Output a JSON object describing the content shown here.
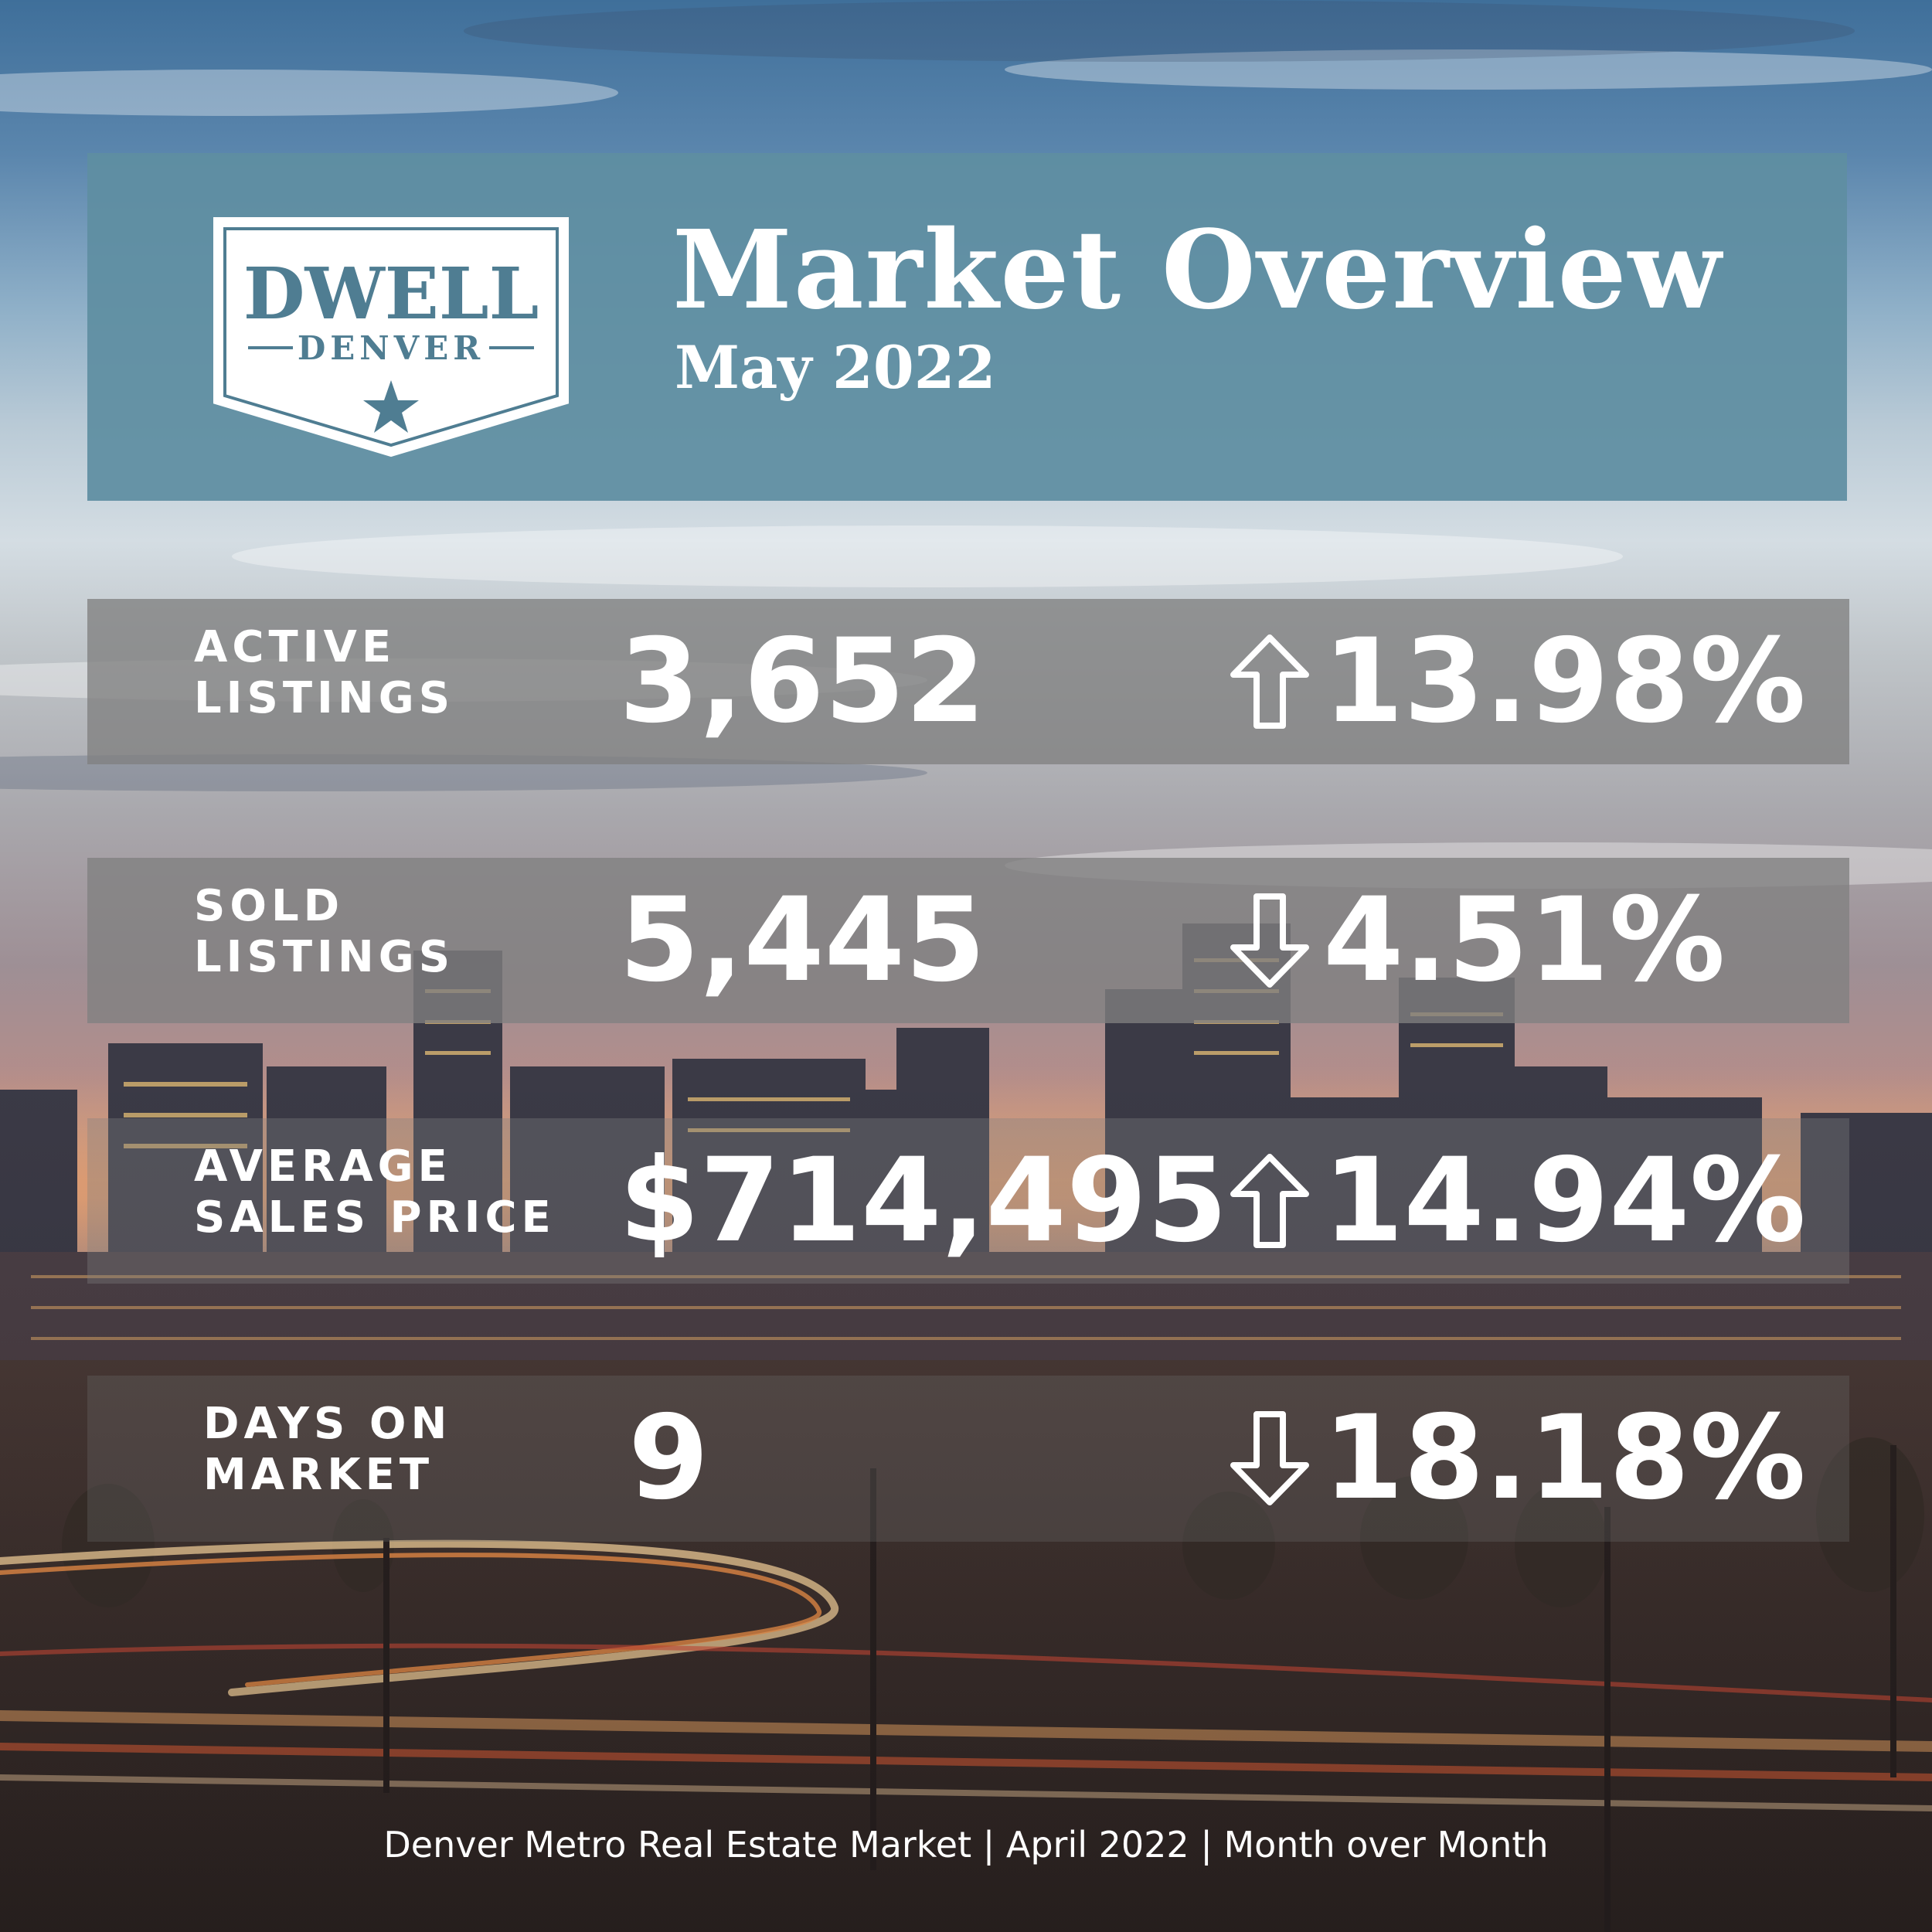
{
  "brand": {
    "logo_top": "DWELL",
    "logo_bottom": "DENVER",
    "logo_icon": "star-icon"
  },
  "header": {
    "title": "Market Overview",
    "subtitle": "May 2022"
  },
  "stats": [
    {
      "label_line1": "ACTIVE",
      "label_line2": "LISTINGS",
      "value": "3,652",
      "direction": "up",
      "icon": "arrow-up-icon",
      "change": "13.98%"
    },
    {
      "label_line1": "SOLD",
      "label_line2": "LISTINGS",
      "value": "5,445",
      "direction": "down",
      "icon": "arrow-down-icon",
      "change": "4.51%"
    },
    {
      "label_line1": "AVERAGE",
      "label_line2": "SALES PRICE",
      "value": "$714,495",
      "direction": "up",
      "icon": "arrow-up-icon",
      "change": "14.94%"
    },
    {
      "label_line1": "DAYS ON",
      "label_line2": "MARKET",
      "value": "9",
      "direction": "down",
      "icon": "arrow-down-icon",
      "change": "18.18%"
    }
  ],
  "footer": {
    "text": "Denver Metro Real Estate Market | April 2022 | Month over Month"
  },
  "colors": {
    "header_bg": "#5f8ea1",
    "logo_text": "#4f7d92",
    "stat_bg": "#808080",
    "text": "#ffffff"
  }
}
